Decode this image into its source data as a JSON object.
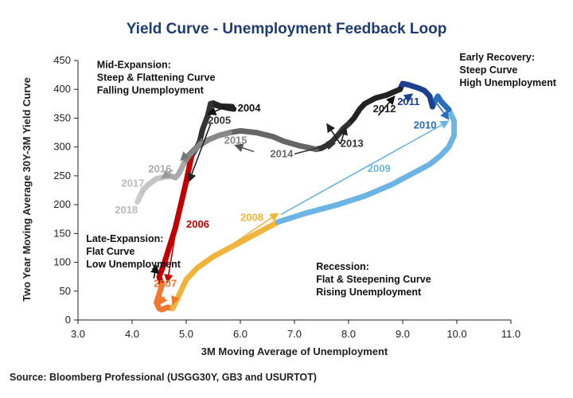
{
  "chart_data": {
    "type": "line",
    "title": "Yield Curve - Unemployment Feedback Loop",
    "xlabel": "3M Moving Average of Unemployment",
    "ylabel": "Two Year Moving Average 30Y-3M Yield Curve",
    "xlim": [
      3.0,
      11.0
    ],
    "ylim": [
      0,
      450
    ],
    "x_ticks": [
      "3.0",
      "4.0",
      "5.0",
      "6.0",
      "7.0",
      "8.0",
      "9.0",
      "10.0",
      "11.0"
    ],
    "y_ticks": [
      "0",
      "50",
      "100",
      "150",
      "200",
      "250",
      "300",
      "350",
      "400",
      "450"
    ],
    "grid": false,
    "series": [
      {
        "name": "2004",
        "color": "#222222",
        "x": [
          5.85,
          5.6,
          5.45,
          5.5,
          5.6,
          5.7,
          5.8,
          5.88
        ],
        "y": [
          370,
          371,
          375,
          376,
          372,
          369,
          367,
          366
        ]
      },
      {
        "name": "2005",
        "color": "#333333",
        "x": [
          5.45,
          5.4,
          5.3,
          5.25,
          5.2,
          5.1
        ],
        "y": [
          375,
          355,
          330,
          310,
          300,
          285
        ]
      },
      {
        "name": "2006",
        "color": "#c00000",
        "x": [
          5.1,
          5.0,
          4.9,
          4.8,
          4.7,
          4.6,
          4.5,
          4.55
        ],
        "y": [
          285,
          240,
          200,
          160,
          130,
          100,
          75,
          60
        ]
      },
      {
        "name": "2007",
        "color": "#f07830",
        "x": [
          4.55,
          4.5,
          4.45,
          4.5,
          4.55,
          4.65,
          4.75
        ],
        "y": [
          60,
          45,
          30,
          20,
          18,
          22,
          20
        ]
      },
      {
        "name": "2008",
        "color": "#f0b43c",
        "x": [
          4.75,
          4.9,
          5.0,
          5.2,
          5.5,
          5.8,
          6.1,
          6.4,
          6.7
        ],
        "y": [
          20,
          50,
          70,
          90,
          110,
          125,
          140,
          155,
          170
        ]
      },
      {
        "name": "2009",
        "color": "#6cb4e4",
        "x": [
          6.7,
          7.2,
          7.8,
          8.3,
          8.8,
          9.2,
          9.5,
          9.7,
          9.85,
          9.95,
          9.95,
          9.85
        ],
        "y": [
          170,
          185,
          200,
          215,
          235,
          255,
          270,
          285,
          300,
          320,
          345,
          365
        ]
      },
      {
        "name": "2010",
        "color": "#2a6fbb",
        "x": [
          9.85,
          9.7,
          9.65,
          9.6,
          9.55
        ],
        "y": [
          365,
          380,
          388,
          380,
          370
        ]
      },
      {
        "name": "2011",
        "color": "#1d3f8f",
        "x": [
          9.55,
          9.5,
          9.4,
          9.3,
          9.1,
          9.0,
          8.95
        ],
        "y": [
          370,
          388,
          398,
          402,
          408,
          410,
          400
        ]
      },
      {
        "name": "2012",
        "color": "#222222",
        "x": [
          8.95,
          8.7,
          8.5,
          8.3,
          8.2,
          8.1,
          8.0
        ],
        "y": [
          400,
          390,
          385,
          375,
          365,
          350,
          340
        ]
      },
      {
        "name": "2013",
        "color": "#333333",
        "x": [
          8.0,
          7.9,
          7.8,
          7.7,
          7.6,
          7.5,
          7.4
        ],
        "y": [
          340,
          332,
          320,
          310,
          303,
          298,
          296
        ]
      },
      {
        "name": "2014",
        "color": "#666666",
        "x": [
          7.4,
          7.1,
          6.8,
          6.6,
          6.3,
          6.0,
          5.8
        ],
        "y": [
          296,
          302,
          310,
          318,
          325,
          328,
          325
        ]
      },
      {
        "name": "2015",
        "color": "#888888",
        "x": [
          5.8,
          5.6,
          5.4,
          5.2,
          5.05,
          4.95
        ],
        "y": [
          325,
          320,
          312,
          300,
          285,
          270
        ]
      },
      {
        "name": "2016",
        "color": "#aaaaaa",
        "x": [
          4.95,
          4.9,
          4.85,
          4.8,
          4.7,
          4.6
        ],
        "y": [
          270,
          260,
          252,
          247,
          250,
          248
        ]
      },
      {
        "name": "2017",
        "color": "#c4c4c4",
        "x": [
          4.6,
          4.45,
          4.3,
          4.2,
          4.15
        ],
        "y": [
          248,
          245,
          235,
          225,
          215
        ]
      },
      {
        "name": "2018",
        "color": "#cccccc",
        "x": [
          4.15,
          4.1
        ],
        "y": [
          215,
          205
        ]
      }
    ],
    "year_labels": [
      {
        "text": "2004",
        "x": 5.95,
        "y": 362,
        "color": "#111111"
      },
      {
        "text": "2005",
        "x": 5.4,
        "y": 340,
        "color": "#333333"
      },
      {
        "text": "2006",
        "x": 5.0,
        "y": 160,
        "color": "#c00000"
      },
      {
        "text": "2007",
        "x": 4.4,
        "y": 57,
        "color": "#f07830"
      },
      {
        "text": "2008",
        "x": 6.0,
        "y": 172,
        "color": "#f0b43c"
      },
      {
        "text": "2009",
        "x": 8.35,
        "y": 257,
        "color": "#6cb4e4"
      },
      {
        "text": "2010",
        "x": 9.2,
        "y": 332,
        "color": "#2a6fbb"
      },
      {
        "text": "2011",
        "x": 8.9,
        "y": 373,
        "color": "#1d3f8f"
      },
      {
        "text": "2012",
        "x": 8.45,
        "y": 360,
        "color": "#222222"
      },
      {
        "text": "2013",
        "x": 7.85,
        "y": 300,
        "color": "#333333"
      },
      {
        "text": "2014",
        "x": 6.55,
        "y": 282,
        "color": "#666666"
      },
      {
        "text": "2015",
        "x": 5.7,
        "y": 306,
        "color": "#888888"
      },
      {
        "text": "2016",
        "x": 4.3,
        "y": 256,
        "color": "#aaaaaa"
      },
      {
        "text": "2017",
        "x": 3.8,
        "y": 231,
        "color": "#bbbbbb"
      },
      {
        "text": "2018",
        "x": 3.68,
        "y": 185,
        "color": "#bbbbbb"
      }
    ],
    "arrows": [
      {
        "x1": 5.72,
        "y1": 369,
        "x2": 5.4,
        "y2": 357,
        "color": "#111111"
      },
      {
        "x1": 5.45,
        "y1": 340,
        "x2": 5.05,
        "y2": 240,
        "color": "#222222"
      },
      {
        "x1": 4.95,
        "y1": 235,
        "x2": 4.65,
        "y2": 65,
        "color": "#c00000"
      },
      {
        "x1": 4.6,
        "y1": 40,
        "x2": 4.5,
        "y2": 27,
        "color": "#f07830"
      },
      {
        "x1": 4.8,
        "y1": 40,
        "x2": 4.75,
        "y2": 27,
        "color": "#f07830"
      },
      {
        "x1": 4.4,
        "y1": 72,
        "x2": 4.45,
        "y2": 95,
        "color": "#111111"
      },
      {
        "x1": 5.2,
        "y1": 90,
        "x2": 6.7,
        "y2": 185,
        "color": "#f0b43c"
      },
      {
        "x1": 6.75,
        "y1": 183,
        "x2": 9.85,
        "y2": 345,
        "color": "#6cb4e4"
      },
      {
        "x1": 9.55,
        "y1": 385,
        "x2": 9.85,
        "y2": 348,
        "color": "#2a6fbb"
      },
      {
        "x1": 9.0,
        "y1": 380,
        "x2": 9.18,
        "y2": 392,
        "color": "#1d3f8f"
      },
      {
        "x1": 8.55,
        "y1": 355,
        "x2": 8.85,
        "y2": 388,
        "color": "#111111"
      },
      {
        "x1": 7.85,
        "y1": 305,
        "x2": 7.95,
        "y2": 335,
        "color": "#222222"
      },
      {
        "x1": 7.85,
        "y1": 305,
        "x2": 7.6,
        "y2": 340,
        "color": "#222222"
      },
      {
        "x1": 7.0,
        "y1": 288,
        "x2": 7.75,
        "y2": 306,
        "color": "#333333"
      },
      {
        "x1": 6.25,
        "y1": 292,
        "x2": 5.9,
        "y2": 303,
        "color": "#555555"
      },
      {
        "x1": 5.3,
        "y1": 315,
        "x2": 4.9,
        "y2": 277,
        "color": "#777777"
      },
      {
        "x1": 4.75,
        "y1": 260,
        "x2": 4.55,
        "y2": 246,
        "color": "#999999"
      }
    ],
    "annotations": [
      {
        "lines": [
          "Mid-Expansion:",
          "Steep & Flattening Curve",
          "Falling Unemployment"
        ],
        "x": 3.35,
        "y": 437,
        "anchor": "start"
      },
      {
        "lines": [
          "Early Recovery:",
          "Steep Curve",
          "High Unemployment"
        ],
        "x": 10.05,
        "y": 450,
        "anchor": "start"
      },
      {
        "lines": [
          "Late-Expansion:",
          "Flat Curve",
          "Low Unemployment"
        ],
        "x": 3.15,
        "y": 135,
        "anchor": "start"
      },
      {
        "lines": [
          "Recession:",
          "Flat & Steepening Curve",
          "Rising Unemployment"
        ],
        "x": 7.4,
        "y": 87,
        "anchor": "start"
      }
    ],
    "legend": "none"
  },
  "source": "Source: Bloomberg Professional (USGG30Y, GB3 and USURTOT)"
}
